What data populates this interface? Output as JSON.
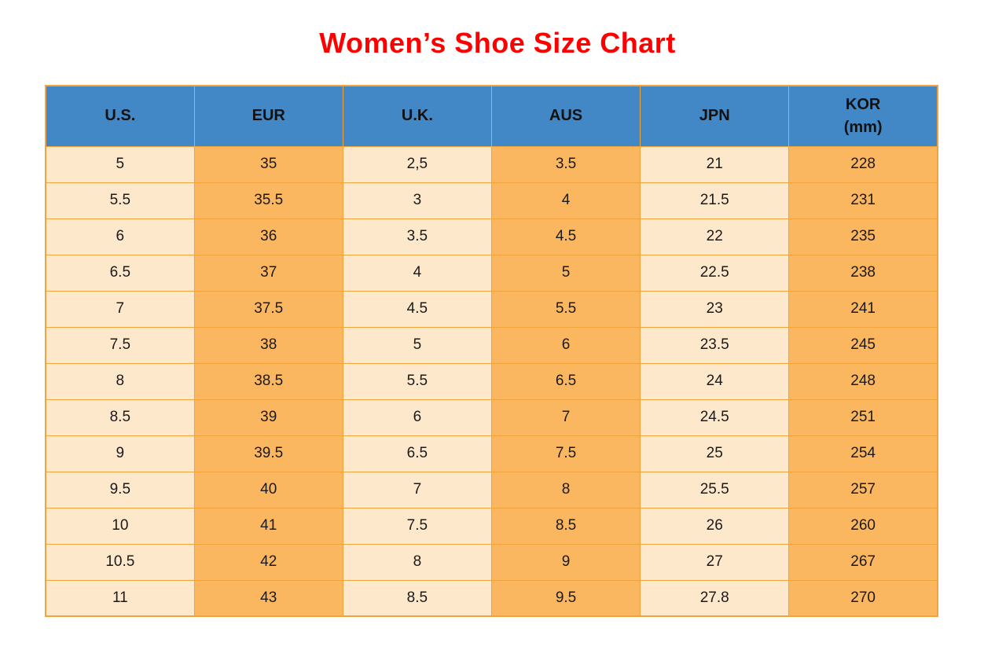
{
  "page": {
    "title": "Women’s Shoe Size Chart"
  },
  "colors": {
    "title": "#FF0000",
    "header_bg": "#4288C6",
    "cell_light": "#FDE8CC",
    "cell_orange": "#FBB75F",
    "border": "#F1A33C",
    "text": "#1A1A1A"
  },
  "table": {
    "headers": [
      {
        "line1": "U.S."
      },
      {
        "line1": "EUR"
      },
      {
        "line1": "U.K."
      },
      {
        "line1": "AUS"
      },
      {
        "line1": "JPN"
      },
      {
        "line1": "KOR",
        "line2": "(mm)"
      }
    ]
  },
  "chart_data": {
    "type": "table",
    "title": "Women’s Shoe Size Chart",
    "columns": [
      "U.S.",
      "EUR",
      "U.K.",
      "AUS",
      "JPN",
      "KOR (mm)"
    ],
    "rows": [
      [
        "5",
        "35",
        "2,5",
        "3.5",
        "21",
        "228"
      ],
      [
        "5.5",
        "35.5",
        "3",
        "4",
        "21.5",
        "231"
      ],
      [
        "6",
        "36",
        "3.5",
        "4.5",
        "22",
        "235"
      ],
      [
        "6.5",
        "37",
        "4",
        "5",
        "22.5",
        "238"
      ],
      [
        "7",
        "37.5",
        "4.5",
        "5.5",
        "23",
        "241"
      ],
      [
        "7.5",
        "38",
        "5",
        "6",
        "23.5",
        "245"
      ],
      [
        "8",
        "38.5",
        "5.5",
        "6.5",
        "24",
        "248"
      ],
      [
        "8.5",
        "39",
        "6",
        "7",
        "24.5",
        "251"
      ],
      [
        "9",
        "39.5",
        "6.5",
        "7.5",
        "25",
        "254"
      ],
      [
        "9.5",
        "40",
        "7",
        "8",
        "25.5",
        "257"
      ],
      [
        "10",
        "41",
        "7.5",
        "8.5",
        "26",
        "260"
      ],
      [
        "10.5",
        "42",
        "8",
        "9",
        "27",
        "267"
      ],
      [
        "11",
        "43",
        "8.5",
        "9.5",
        "27.8",
        "270"
      ]
    ],
    "layout": {
      "header_style": "blue band, bold black text",
      "column_fill_pattern": [
        "light",
        "orange",
        "light",
        "orange",
        "light",
        "orange"
      ],
      "grid": "orange borders on all cells"
    }
  }
}
